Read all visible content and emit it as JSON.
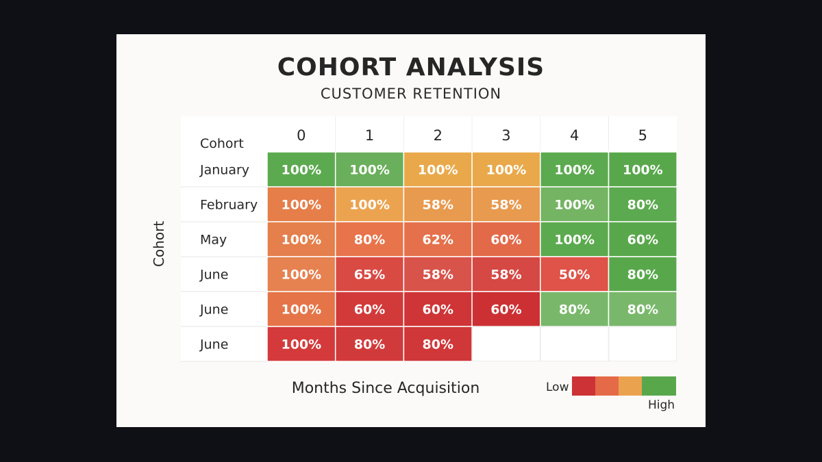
{
  "chart_data": {
    "type": "heatmap",
    "title": "COHORT ANALYSIS",
    "subtitle": "CUSTOMER RETENTION",
    "xlabel": "Months Since Acquisition",
    "ylabel": "Cohort",
    "corner_label": "Cohort",
    "columns": [
      "0",
      "1",
      "2",
      "3",
      "4",
      "5"
    ],
    "rows": [
      "January",
      "February",
      "May",
      "June",
      "June",
      "June"
    ],
    "values": [
      [
        100,
        100,
        100,
        100,
        100,
        100
      ],
      [
        100,
        100,
        58,
        58,
        100,
        80
      ],
      [
        100,
        80,
        62,
        60,
        100,
        60
      ],
      [
        100,
        65,
        58,
        58,
        50,
        80
      ],
      [
        100,
        60,
        60,
        60,
        80,
        80
      ],
      [
        100,
        80,
        80,
        null,
        null,
        null
      ]
    ],
    "cell_colors": [
      [
        "#5caa4f",
        "#6aaf5b",
        "#e9a94b",
        "#e9a94b",
        "#5caa4f",
        "#58a84b"
      ],
      [
        "#e57e49",
        "#eca34f",
        "#e89a4f",
        "#e89a4f",
        "#74b463",
        "#5caa4f"
      ],
      [
        "#e57f4b",
        "#e8744b",
        "#e4714b",
        "#e36a49",
        "#5caa4f",
        "#58a84b"
      ],
      [
        "#e68150",
        "#d94a43",
        "#d8534a",
        "#d54844",
        "#df5349",
        "#58a84b"
      ],
      [
        "#e57548",
        "#d23a3a",
        "#cf3537",
        "#cc3033",
        "#79b86a",
        "#79b86a"
      ],
      [
        "#d43a3b",
        "#d13a3b",
        "#cf3739",
        null,
        null,
        null
      ]
    ],
    "value_suffix": "%",
    "legend": {
      "low_label": "Low",
      "high_label": "High",
      "colors": [
        "#cc3236",
        "#e56a48",
        "#eba24f",
        "#58a84b"
      ]
    }
  }
}
